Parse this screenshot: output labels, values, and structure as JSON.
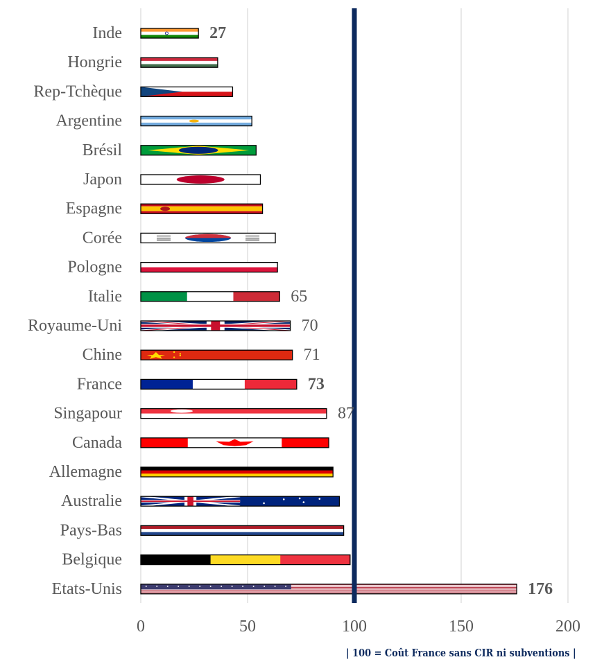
{
  "chart_data": {
    "type": "bar",
    "orientation": "horizontal",
    "categories": [
      "Inde",
      "Hongrie",
      "Rep-Tchèque",
      "Argentine",
      "Brésil",
      "Japon",
      "Espagne",
      "Corée",
      "Pologne",
      "Italie",
      "Royaume-Uni",
      "Chine",
      "France",
      "Singapour",
      "Canada",
      "Allemagne",
      "Australie",
      "Pays-Bas",
      "Belgique",
      "Etats-Unis"
    ],
    "values": [
      27,
      36,
      43,
      52,
      54,
      56,
      57,
      63,
      64,
      65,
      70,
      71,
      73,
      87,
      88,
      90,
      93,
      95,
      98,
      176
    ],
    "data_labels": [
      {
        "category": "Inde",
        "text": "27",
        "bold": true
      },
      {
        "category": "Italie",
        "text": "65",
        "bold": false
      },
      {
        "category": "Royaume-Uni",
        "text": "70",
        "bold": false
      },
      {
        "category": "Chine",
        "text": "71",
        "bold": false
      },
      {
        "category": "France",
        "text": "73",
        "bold": true
      },
      {
        "category": "Singapour",
        "text": "87",
        "bold": false
      },
      {
        "category": "Etats-Unis",
        "text": "176",
        "bold": true
      }
    ],
    "xlim": [
      0,
      200
    ],
    "x_ticks": [
      0,
      50,
      100,
      150,
      200
    ],
    "reference_line": 100,
    "grid": "vertical",
    "footnote": "| 100 = Coût France sans CIR ni subventions |",
    "bar_fill": "country flags",
    "colors": {
      "reference_line": "#0d2a5e",
      "grid": "#d9d9d9",
      "label_text": "#595959",
      "footnote": "#0d2a5e"
    }
  }
}
